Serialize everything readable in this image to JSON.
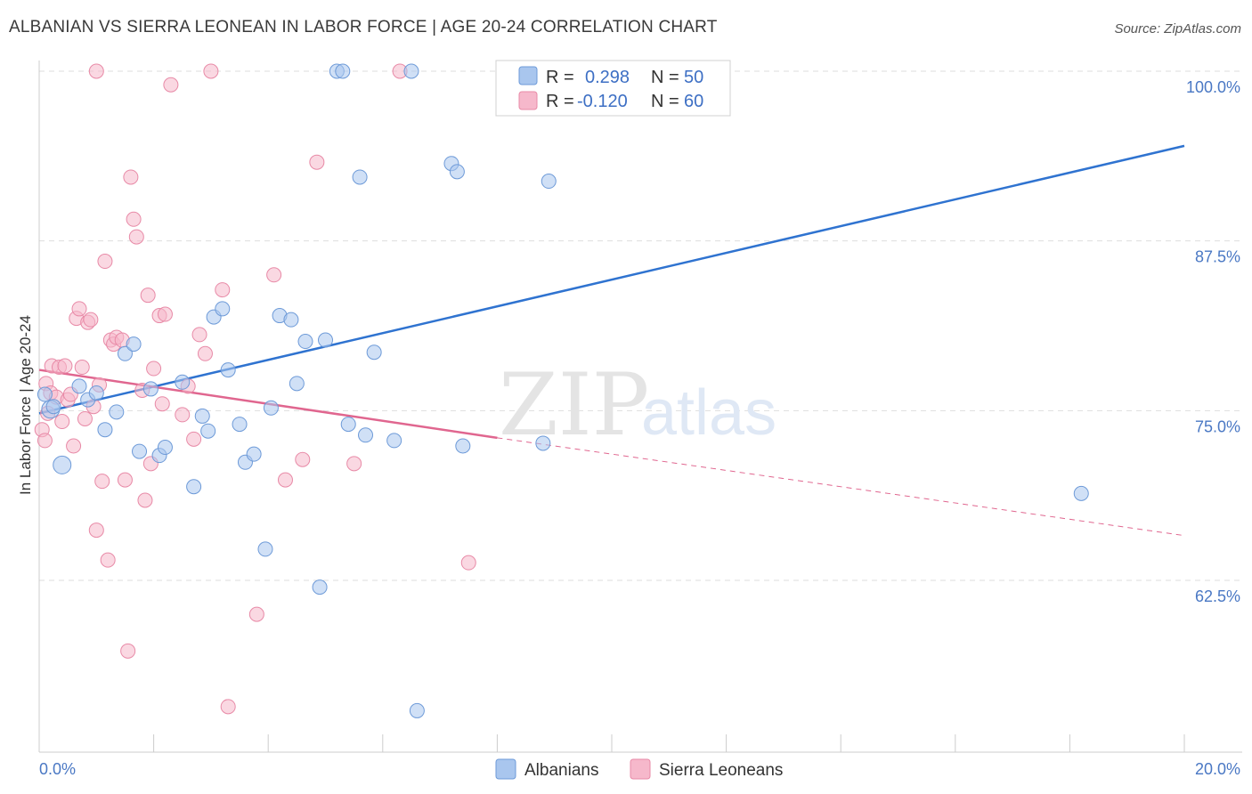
{
  "title": "ALBANIAN VS SIERRA LEONEAN IN LABOR FORCE | AGE 20-24 CORRELATION CHART",
  "source": "Source: ZipAtlas.com",
  "watermark": {
    "zip": "ZIP",
    "atlas": "atlas"
  },
  "colors": {
    "blue_fill": "#a9c6ee",
    "blue_stroke": "#6d9ad8",
    "blue_line": "#2f73d0",
    "pink_fill": "#f6b8cb",
    "pink_stroke": "#e88aa7",
    "pink_line": "#e0668f",
    "tick_text": "#4a78c4",
    "grid": "#dddddd"
  },
  "legend": {
    "r_label": "R =",
    "n_label": "N =",
    "rows": [
      {
        "r": "0.298",
        "n": "50"
      },
      {
        "r": "-0.120",
        "n": "60"
      }
    ]
  },
  "chart_data": {
    "type": "scatter",
    "title": "ALBANIAN VS SIERRA LEONEAN IN LABOR FORCE | AGE 20-24 CORRELATION CHART",
    "xlabel": "",
    "ylabel": "In Labor Force | Age 20-24",
    "xlim": [
      0,
      20
    ],
    "ylim": [
      50,
      101
    ],
    "x_tick_labels": [
      "0.0%",
      "20.0%"
    ],
    "y_ticks": [
      62.5,
      75.0,
      87.5,
      100.0
    ],
    "y_tick_labels": [
      "62.5%",
      "75.0%",
      "87.5%",
      "100.0%"
    ],
    "grid": true,
    "legend_placement": "bottom-center",
    "series": [
      {
        "name": "Albanians",
        "color": "#a9c6ee",
        "stats": {
          "R": 0.298,
          "N": 50
        },
        "trend": {
          "x": [
            0,
            20
          ],
          "y": [
            74.8,
            94.5
          ]
        },
        "points": [
          [
            0.1,
            76.2
          ],
          [
            0.2,
            75.1
          ],
          [
            0.25,
            75.3
          ],
          [
            0.4,
            71.0
          ],
          [
            0.7,
            76.8
          ],
          [
            0.85,
            75.8
          ],
          [
            1.0,
            76.3
          ],
          [
            1.15,
            73.6
          ],
          [
            1.35,
            74.9
          ],
          [
            1.5,
            79.2
          ],
          [
            1.65,
            79.9
          ],
          [
            1.75,
            72.0
          ],
          [
            1.95,
            76.6
          ],
          [
            2.1,
            71.7
          ],
          [
            2.2,
            72.3
          ],
          [
            2.5,
            77.1
          ],
          [
            2.7,
            69.4
          ],
          [
            2.85,
            74.6
          ],
          [
            2.95,
            73.5
          ],
          [
            3.05,
            81.9
          ],
          [
            3.2,
            82.5
          ],
          [
            3.3,
            78.0
          ],
          [
            3.5,
            74.0
          ],
          [
            3.6,
            71.2
          ],
          [
            3.75,
            71.8
          ],
          [
            3.95,
            64.8
          ],
          [
            4.05,
            75.2
          ],
          [
            4.2,
            82.0
          ],
          [
            4.4,
            81.7
          ],
          [
            4.5,
            77.0
          ],
          [
            4.65,
            80.1
          ],
          [
            4.9,
            62.0
          ],
          [
            5.0,
            80.2
          ],
          [
            5.2,
            100.0
          ],
          [
            5.3,
            100.0
          ],
          [
            5.4,
            74.0
          ],
          [
            5.6,
            92.2
          ],
          [
            5.7,
            73.2
          ],
          [
            5.85,
            79.3
          ],
          [
            6.2,
            72.8
          ],
          [
            6.5,
            100.0
          ],
          [
            6.6,
            52.9
          ],
          [
            7.2,
            93.2
          ],
          [
            7.3,
            92.6
          ],
          [
            7.4,
            72.4
          ],
          [
            8.2,
            100.0
          ],
          [
            8.7,
            100.0
          ],
          [
            8.8,
            72.6
          ],
          [
            8.9,
            91.9
          ],
          [
            18.2,
            68.9
          ]
        ]
      },
      {
        "name": "Sierra Leoneans",
        "color": "#f6b8cb",
        "stats": {
          "R": -0.12,
          "N": 60
        },
        "trend": {
          "x": [
            0,
            8.0
          ],
          "y": [
            78.0,
            73.0
          ]
        },
        "trend_extension": {
          "x": [
            8.0,
            20
          ],
          "y": [
            73.0,
            65.8
          ]
        },
        "points": [
          [
            0.05,
            73.6
          ],
          [
            0.1,
            72.8
          ],
          [
            0.12,
            77.0
          ],
          [
            0.15,
            74.8
          ],
          [
            0.2,
            76.3
          ],
          [
            0.22,
            78.3
          ],
          [
            0.3,
            76.0
          ],
          [
            0.35,
            78.2
          ],
          [
            0.4,
            74.2
          ],
          [
            0.45,
            78.3
          ],
          [
            0.5,
            75.8
          ],
          [
            0.55,
            76.2
          ],
          [
            0.6,
            72.4
          ],
          [
            0.65,
            81.8
          ],
          [
            0.7,
            82.5
          ],
          [
            0.75,
            78.2
          ],
          [
            0.8,
            74.4
          ],
          [
            0.85,
            81.5
          ],
          [
            0.9,
            81.7
          ],
          [
            0.95,
            75.3
          ],
          [
            1.0,
            66.2
          ],
          [
            1.05,
            76.9
          ],
          [
            1.1,
            69.8
          ],
          [
            1.15,
            86.0
          ],
          [
            1.2,
            64.0
          ],
          [
            1.25,
            80.2
          ],
          [
            1.3,
            79.9
          ],
          [
            1.35,
            80.4
          ],
          [
            1.45,
            80.2
          ],
          [
            1.5,
            69.9
          ],
          [
            1.55,
            57.3
          ],
          [
            1.6,
            92.2
          ],
          [
            1.65,
            89.1
          ],
          [
            1.7,
            87.8
          ],
          [
            1.8,
            76.5
          ],
          [
            1.85,
            68.4
          ],
          [
            1.9,
            83.5
          ],
          [
            1.95,
            71.1
          ],
          [
            2.0,
            78.1
          ],
          [
            2.1,
            82.0
          ],
          [
            2.15,
            75.5
          ],
          [
            2.2,
            82.1
          ],
          [
            2.3,
            99.0
          ],
          [
            2.5,
            74.7
          ],
          [
            2.6,
            76.8
          ],
          [
            2.7,
            72.9
          ],
          [
            2.8,
            80.6
          ],
          [
            2.9,
            79.2
          ],
          [
            3.0,
            100.0
          ],
          [
            3.2,
            83.9
          ],
          [
            3.3,
            53.2
          ],
          [
            3.8,
            60.0
          ],
          [
            4.1,
            85.0
          ],
          [
            4.3,
            69.9
          ],
          [
            4.6,
            71.4
          ],
          [
            4.85,
            93.3
          ],
          [
            5.5,
            71.1
          ],
          [
            6.3,
            100.0
          ],
          [
            7.5,
            63.8
          ],
          [
            1.0,
            100.0
          ]
        ]
      }
    ]
  },
  "bottom_legend": [
    {
      "label": "Albanians"
    },
    {
      "label": "Sierra Leoneans"
    }
  ]
}
